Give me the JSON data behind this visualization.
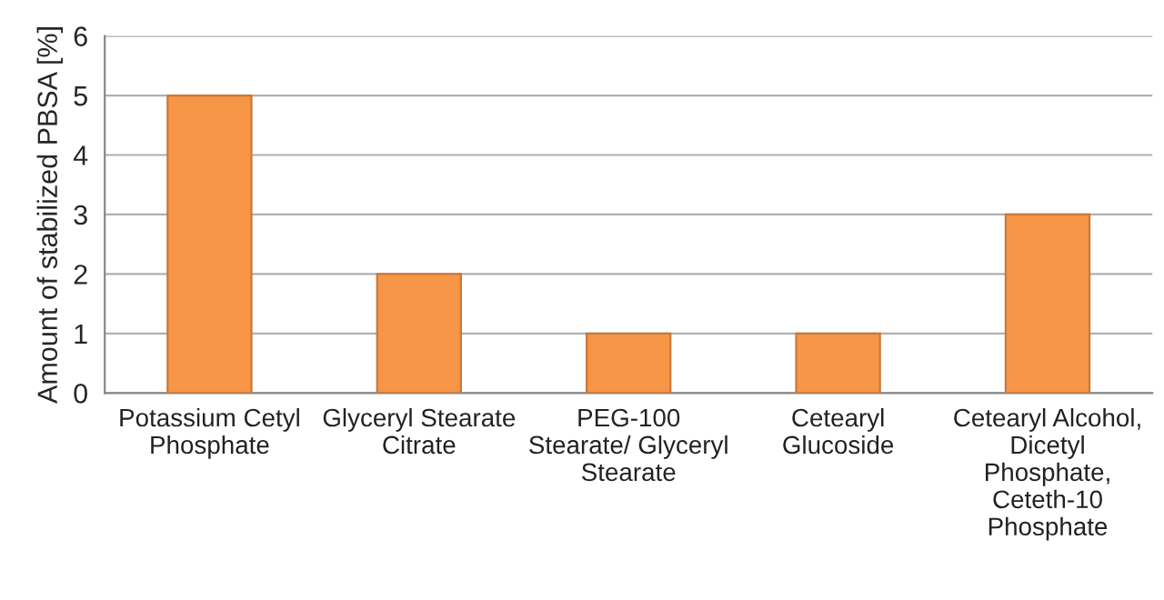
{
  "chart_data": {
    "type": "bar",
    "ylabel": "Amount of stabilized PBSA [%]",
    "categories": [
      "Potassium Cetyl\nPhosphate",
      "Glyceryl Stearate\nCitrate",
      "PEG-100\nStearate/ Glyceryl\nStearate",
      "Cetearyl\nGlucoside",
      "Cetearyl Alcohol,\nDicetyl\nPhosphate,\nCeteth-10\nPhosphate"
    ],
    "values": [
      5,
      2,
      1,
      1,
      3
    ],
    "color": "#f79646",
    "ylim": [
      0,
      6
    ],
    "yticks": [
      0,
      1,
      2,
      3,
      4,
      5,
      6
    ],
    "grid": "y",
    "legend": false
  }
}
